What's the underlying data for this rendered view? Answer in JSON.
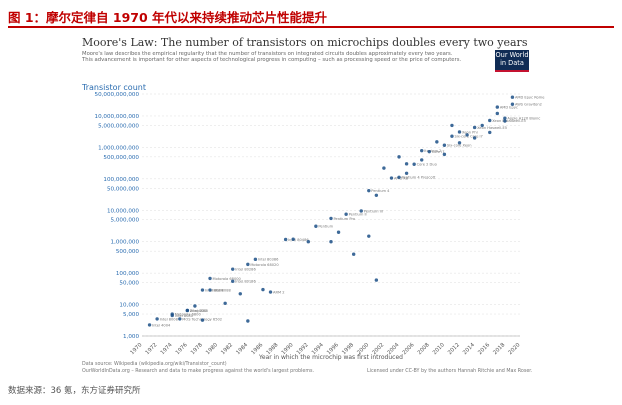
{
  "report": {
    "figure_caption": "图 1：摩尔定律自 1970 年代以来持续推动芯片性能提升",
    "source": "数据来源：36 氪，东方证券研究所"
  },
  "logo": {
    "line1": "Our World",
    "line2": "in Data"
  },
  "colors": {
    "accent_red": "#c00000",
    "point": "#1b4f86",
    "axis_label": "#2a6cb0",
    "logo_bg": "#102c55"
  },
  "chart_data": {
    "type": "scatter",
    "title": "Moore's Law: The number of transistors on microchips doubles every two years",
    "subtitle_lines": [
      "Moore's law describes the empirical regularity that the number of transistors on integrated circuits doubles approximately every two years.",
      "This advancement is important for other aspects of technological progress in computing – such as processing speed or the price of computers."
    ],
    "ylabel": "Transistor count",
    "xlabel": "Year in which the microchip was first introduced",
    "yscale": "log",
    "ylim": [
      1000,
      50000000000
    ],
    "xlim": [
      1970,
      2020
    ],
    "yticks": [
      {
        "v": 50000000000,
        "label": "50,000,000,000"
      },
      {
        "v": 10000000000,
        "label": "10,000,000,000"
      },
      {
        "v": 5000000000,
        "label": "5,000,000,000"
      },
      {
        "v": 1000000000,
        "label": "1,000,000,000"
      },
      {
        "v": 500000000,
        "label": "500,000,000"
      },
      {
        "v": 100000000,
        "label": "100,000,000"
      },
      {
        "v": 50000000,
        "label": "50,000,000"
      },
      {
        "v": 10000000,
        "label": "10,000,000"
      },
      {
        "v": 5000000,
        "label": "5,000,000"
      },
      {
        "v": 1000000,
        "label": "1,000,000"
      },
      {
        "v": 500000,
        "label": "500,000"
      },
      {
        "v": 100000,
        "label": "100,000"
      },
      {
        "v": 50000,
        "label": "50,000"
      },
      {
        "v": 10000,
        "label": "10,000"
      },
      {
        "v": 5000,
        "label": "5,000"
      },
      {
        "v": 1000,
        "label": "1,000"
      }
    ],
    "xticks": [
      1970,
      1972,
      1974,
      1976,
      1978,
      1980,
      1982,
      1984,
      1986,
      1988,
      1990,
      1992,
      1994,
      1996,
      1998,
      2000,
      2002,
      2004,
      2006,
      2008,
      2010,
      2012,
      2014,
      2016,
      2018,
      2020
    ],
    "points": [
      {
        "x": 1971,
        "y": 2250,
        "label": "Intel 4004"
      },
      {
        "x": 1972,
        "y": 3500,
        "label": "Intel 8008"
      },
      {
        "x": 1974,
        "y": 4500,
        "label": "Intel 8080"
      },
      {
        "x": 1974,
        "y": 5000,
        "label": "Motorola 6800"
      },
      {
        "x": 1975,
        "y": 3500,
        "label": "MOS Technology 6502"
      },
      {
        "x": 1976,
        "y": 6500,
        "label": "Zilog Z80"
      },
      {
        "x": 1976,
        "y": 6500,
        "label": "Intel 8085"
      },
      {
        "x": 1978,
        "y": 29000,
        "label": "Intel 8086"
      },
      {
        "x": 1979,
        "y": 68000,
        "label": "Motorola 68000"
      },
      {
        "x": 1979,
        "y": 29000,
        "label": "Intel 8088"
      },
      {
        "x": 1982,
        "y": 134000,
        "label": "Intel 80286"
      },
      {
        "x": 1982,
        "y": 55000,
        "label": "Intel 80186"
      },
      {
        "x": 1985,
        "y": 275000,
        "label": "Intel 80386"
      },
      {
        "x": 1984,
        "y": 190000,
        "label": "Motorola 68020"
      },
      {
        "x": 1987,
        "y": 25000,
        "label": "ARM 2"
      },
      {
        "x": 1989,
        "y": 1180000,
        "label": "Intel 80486"
      },
      {
        "x": 1993,
        "y": 3100000,
        "label": "Pentium"
      },
      {
        "x": 1995,
        "y": 5500000,
        "label": "Pentium Pro"
      },
      {
        "x": 1997,
        "y": 7500000,
        "label": "Pentium II"
      },
      {
        "x": 1999,
        "y": 9500000,
        "label": "Pentium III"
      },
      {
        "x": 2000,
        "y": 42000000,
        "label": "Pentium 4"
      },
      {
        "x": 2003,
        "y": 105900000,
        "label": "AMD K8"
      },
      {
        "x": 2004,
        "y": 112000000,
        "label": "Pentium 4 Prescott"
      },
      {
        "x": 2006,
        "y": 291000000,
        "label": "Core 2 Duo"
      },
      {
        "x": 2007,
        "y": 789000000,
        "label": "Itanium 2"
      },
      {
        "x": 2008,
        "y": 731000000,
        "label": "Core i7"
      },
      {
        "x": 2010,
        "y": 1170000000,
        "label": "Six-core Xeon"
      },
      {
        "x": 2011,
        "y": 2270000000,
        "label": "Six-core Core i7"
      },
      {
        "x": 2012,
        "y": 3100000000,
        "label": "Xeon Phi"
      },
      {
        "x": 2014,
        "y": 4310000000,
        "label": "Xeon Haswell-E5"
      },
      {
        "x": 2016,
        "y": 7200000000,
        "label": "Xeon Broadwell-E5"
      },
      {
        "x": 2017,
        "y": 19200000000,
        "label": "AMD Epyc"
      },
      {
        "x": 2018,
        "y": 8500000000,
        "label": "Apple A12X Bionic"
      },
      {
        "x": 2019,
        "y": 39540000000,
        "label": "AMD Epyc Rome"
      },
      {
        "x": 2019,
        "y": 23600000000,
        "label": "AWS Graviton2"
      },
      {
        "x": 1995,
        "y": 1000000,
        "label": ""
      },
      {
        "x": 2000,
        "y": 1500000,
        "label": ""
      },
      {
        "x": 1998,
        "y": 400000,
        "label": ""
      },
      {
        "x": 2001,
        "y": 30000000,
        "label": ""
      },
      {
        "x": 2002,
        "y": 220000000,
        "label": ""
      },
      {
        "x": 2004,
        "y": 500000000,
        "label": ""
      },
      {
        "x": 2005,
        "y": 300000000,
        "label": ""
      },
      {
        "x": 2009,
        "y": 1500000000,
        "label": ""
      },
      {
        "x": 2013,
        "y": 2500000000,
        "label": ""
      },
      {
        "x": 2015,
        "y": 5000000000,
        "label": ""
      },
      {
        "x": 2016,
        "y": 3000000000,
        "label": ""
      },
      {
        "x": 2018,
        "y": 6900000000,
        "label": ""
      },
      {
        "x": 2010,
        "y": 600000000,
        "label": ""
      },
      {
        "x": 2012,
        "y": 1400000000,
        "label": ""
      },
      {
        "x": 2014,
        "y": 2000000000,
        "label": ""
      },
      {
        "x": 2017,
        "y": 12000000000,
        "label": ""
      },
      {
        "x": 1986,
        "y": 30000,
        "label": ""
      },
      {
        "x": 1981,
        "y": 11000,
        "label": ""
      },
      {
        "x": 1983,
        "y": 22000,
        "label": ""
      },
      {
        "x": 1977,
        "y": 9000,
        "label": ""
      },
      {
        "x": 1990,
        "y": 1200000,
        "label": ""
      },
      {
        "x": 1992,
        "y": 1000000,
        "label": ""
      },
      {
        "x": 1996,
        "y": 2000000,
        "label": ""
      },
      {
        "x": 2005,
        "y": 150000000,
        "label": ""
      },
      {
        "x": 2007,
        "y": 400000000,
        "label": ""
      },
      {
        "x": 2001,
        "y": 60000,
        "label": ""
      },
      {
        "x": 1984,
        "y": 3000,
        "label": ""
      },
      {
        "x": 1978,
        "y": 3200,
        "label": ""
      },
      {
        "x": 2011,
        "y": 5000000000,
        "label": ""
      }
    ],
    "footnote_source": "Data source: Wikipedia (wikipedia.org/wiki/Transistor_count)",
    "footnote_owid": "OurWorldInData.org – Research and data to make progress against the world's largest problems.",
    "footnote_license": "Licensed under CC-BY by the authors Hannah Ritchie and Max Roser."
  }
}
